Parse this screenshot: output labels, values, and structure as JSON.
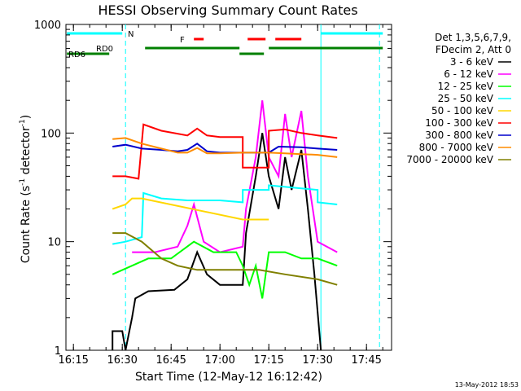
{
  "chart_data": {
    "type": "line",
    "title": "HESSI Observing Summary Count Rates",
    "xlabel": "Start Time (12-May-12 16:12:42)",
    "ylabel_main": "Count Rate (s",
    "ylabel_sup1": "-1",
    "ylabel_mid": " detector",
    "ylabel_sup2": "-1",
    "ylabel_end": ")",
    "y_scale": "log",
    "ylim": [
      1,
      1000
    ],
    "xlim": [
      "16:12:42",
      "17:52:42"
    ],
    "x_ticks": [
      "16:15",
      "16:30",
      "16:45",
      "17:00",
      "17:15",
      "17:30",
      "17:45"
    ],
    "y_ticks": [
      "1",
      "10",
      "100",
      "1000"
    ],
    "footer": "13-May-2012 18:53",
    "legend_header": [
      "Det 1,3,5,6,7,9,",
      "FDecim 2, Att 0"
    ],
    "series": [
      {
        "name": "3 - 6 keV",
        "color": "#000000",
        "points": [
          [
            "16:27:00",
            1
          ],
          [
            "16:27:00",
            1.5
          ],
          [
            "16:30:00",
            1.5
          ],
          [
            "16:31:00",
            1
          ],
          [
            "16:33:00",
            2
          ],
          [
            "16:34:00",
            3
          ],
          [
            "16:38:00",
            3.5
          ],
          [
            "16:46:00",
            3.6
          ],
          [
            "16:50:00",
            4.5
          ],
          [
            "16:53:00",
            8
          ],
          [
            "16:56:00",
            5
          ],
          [
            "17:00:00",
            4
          ],
          [
            "17:07:00",
            4
          ],
          [
            "17:08:00",
            12
          ],
          [
            "17:11:00",
            40
          ],
          [
            "17:13:00",
            100
          ],
          [
            "17:15:00",
            40
          ],
          [
            "17:18:00",
            20
          ],
          [
            "17:20:00",
            60
          ],
          [
            "17:22:00",
            30
          ],
          [
            "17:25:00",
            70
          ],
          [
            "17:27:00",
            20
          ],
          [
            "17:29:00",
            5
          ],
          [
            "17:31:00",
            1
          ],
          [
            "17:31:00",
            1
          ]
        ]
      },
      {
        "name": "6 - 12 keV",
        "color": "#ff00ff",
        "points": [
          [
            "16:33:00",
            8
          ],
          [
            "16:40:00",
            8
          ],
          [
            "16:47:00",
            9
          ],
          [
            "16:50:00",
            14
          ],
          [
            "16:52:00",
            22
          ],
          [
            "16:55:00",
            10
          ],
          [
            "17:00:00",
            8
          ],
          [
            "17:07:00",
            9
          ],
          [
            "17:08:00",
            20
          ],
          [
            "17:11:00",
            60
          ],
          [
            "17:13:00",
            200
          ],
          [
            "17:15:00",
            60
          ],
          [
            "17:18:00",
            40
          ],
          [
            "17:20:00",
            150
          ],
          [
            "17:22:00",
            60
          ],
          [
            "17:25:00",
            160
          ],
          [
            "17:27:00",
            40
          ],
          [
            "17:30:00",
            10
          ],
          [
            "17:36:00",
            8
          ]
        ]
      },
      {
        "name": "12 - 25 keV",
        "color": "#00ff00",
        "points": [
          [
            "16:27:00",
            5
          ],
          [
            "16:33:00",
            6
          ],
          [
            "16:38:00",
            7
          ],
          [
            "16:45:00",
            7
          ],
          [
            "16:52:00",
            10
          ],
          [
            "16:58:00",
            8
          ],
          [
            "17:05:00",
            8
          ],
          [
            "17:07:00",
            6
          ],
          [
            "17:09:00",
            4
          ],
          [
            "17:11:00",
            6
          ],
          [
            "17:13:00",
            3
          ],
          [
            "17:15:00",
            8
          ],
          [
            "17:20:00",
            8
          ],
          [
            "17:25:00",
            7
          ],
          [
            "17:30:00",
            7
          ],
          [
            "17:36:00",
            6
          ]
        ]
      },
      {
        "name": "25 - 50 keV",
        "color": "#00ffff",
        "points": [
          [
            "16:27:00",
            9.5
          ],
          [
            "16:31:00",
            10
          ],
          [
            "16:36:00",
            11
          ],
          [
            "16:36:30",
            28
          ],
          [
            "16:42:00",
            25
          ],
          [
            "16:50:00",
            24
          ],
          [
            "17:00:00",
            24
          ],
          [
            "17:07:00",
            23
          ],
          [
            "17:07:00",
            30
          ],
          [
            "17:15:00",
            30
          ],
          [
            "17:15:00",
            33
          ],
          [
            "17:30:00",
            30
          ],
          [
            "17:30:00",
            23
          ],
          [
            "17:36:00",
            22
          ]
        ]
      },
      {
        "name": "50 - 100 keV",
        "color": "#ffd700",
        "points": [
          [
            "16:27:00",
            20
          ],
          [
            "16:31:00",
            22
          ],
          [
            "16:33:00",
            25
          ],
          [
            "16:36:00",
            25
          ],
          [
            "17:07:00",
            16
          ],
          [
            "17:15:00",
            16
          ]
        ]
      },
      {
        "name": "100 - 300 keV",
        "color": "#ff0000",
        "points": [
          [
            "16:27:00",
            40
          ],
          [
            "16:31:00",
            40
          ],
          [
            "16:35:00",
            38
          ],
          [
            "16:36:30",
            120
          ],
          [
            "16:42:00",
            105
          ],
          [
            "16:50:00",
            95
          ],
          [
            "16:53:00",
            110
          ],
          [
            "16:56:00",
            95
          ],
          [
            "17:00:00",
            92
          ],
          [
            "17:07:00",
            92
          ],
          [
            "17:07:00",
            48
          ],
          [
            "17:15:00",
            48
          ],
          [
            "17:15:00",
            105
          ],
          [
            "17:20:00",
            108
          ],
          [
            "17:25:00",
            100
          ],
          [
            "17:30:00",
            95
          ],
          [
            "17:30:00",
            95
          ],
          [
            "17:36:00",
            90
          ]
        ]
      },
      {
        "name": "300 - 800 keV",
        "color": "#0000cc",
        "points": [
          [
            "16:27:00",
            75
          ],
          [
            "16:31:00",
            78
          ],
          [
            "16:36:00",
            72
          ],
          [
            "16:42:00",
            70
          ],
          [
            "16:47:00",
            68
          ],
          [
            "16:50:00",
            70
          ],
          [
            "16:53:00",
            80
          ],
          [
            "16:56:00",
            68
          ],
          [
            "17:00:00",
            66
          ],
          [
            "17:07:00",
            66
          ],
          [
            "17:15:00",
            66
          ],
          [
            "17:18:00",
            75
          ],
          [
            "17:25:00",
            74
          ],
          [
            "17:30:00",
            72
          ],
          [
            "17:36:00",
            70
          ]
        ]
      },
      {
        "name": "800 - 7000 keV",
        "color": "#ff8c00",
        "points": [
          [
            "16:27:00",
            88
          ],
          [
            "16:31:00",
            90
          ],
          [
            "16:36:00",
            80
          ],
          [
            "16:42:00",
            72
          ],
          [
            "16:47:00",
            66
          ],
          [
            "16:50:00",
            66
          ],
          [
            "16:53:00",
            73
          ],
          [
            "16:56:00",
            65
          ],
          [
            "17:00:00",
            65
          ],
          [
            "17:07:00",
            66
          ],
          [
            "17:15:00",
            66
          ],
          [
            "17:20:00",
            65
          ],
          [
            "17:25:00",
            64
          ],
          [
            "17:30:00",
            63
          ],
          [
            "17:36:00",
            60
          ]
        ]
      },
      {
        "name": "7000 - 20000 keV",
        "color": "#808000",
        "points": [
          [
            "16:27:00",
            12
          ],
          [
            "16:31:00",
            12
          ],
          [
            "16:36:00",
            10
          ],
          [
            "16:42:00",
            7
          ],
          [
            "16:47:00",
            6
          ],
          [
            "16:53:00",
            5.5
          ],
          [
            "17:00:00",
            5.5
          ],
          [
            "17:07:00",
            5.5
          ],
          [
            "17:12:00",
            5.5
          ],
          [
            "17:20:00",
            5
          ],
          [
            "17:30:00",
            4.5
          ],
          [
            "17:36:00",
            4
          ]
        ]
      }
    ],
    "annotations": [
      {
        "label": "N",
        "color": "#00ffff",
        "segments": [
          [
            "16:13:00",
            "16:30:00"
          ],
          [
            "17:31:00",
            "17:50:00"
          ]
        ]
      },
      {
        "label": "F",
        "color": "#ff0000",
        "segments": [
          [
            "16:52:00",
            "16:55:00"
          ],
          [
            "17:08:30",
            "17:14:00"
          ],
          [
            "17:17:00",
            "17:25:00"
          ]
        ]
      },
      {
        "label": "RD0",
        "color": "#008000",
        "segments": [
          [
            "16:37:00",
            "17:06:00"
          ],
          [
            "17:15:00",
            "17:50:00"
          ]
        ]
      },
      {
        "label": "RD6",
        "color": "#008000",
        "segments": [
          [
            "16:13:00",
            "16:26:00"
          ],
          [
            "17:06:00",
            "17:13:30"
          ]
        ]
      }
    ],
    "vlines": [
      {
        "time": "16:31:00",
        "color": "#00ffff",
        "style": "dashed"
      },
      {
        "time": "17:31:00",
        "color": "#00ffff",
        "style": "solid"
      },
      {
        "time": "17:49:00",
        "color": "#00ffff",
        "style": "dashed"
      }
    ]
  }
}
